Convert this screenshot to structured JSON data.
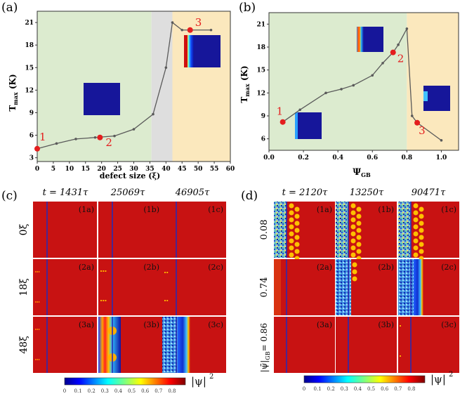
{
  "colors": {
    "green_bg": "#dcebcf",
    "gray_bg": "#dedede",
    "yellow_bg": "#fbe8bd",
    "line": "#5a5a5a",
    "marker": "#e41e1e",
    "label_red": "#e41e1e",
    "field_red": "#c81212",
    "field_blue": "#16169a",
    "gb_line": "#2a2ab0"
  },
  "panels": {
    "a": {
      "tag": "(a)"
    },
    "b": {
      "tag": "(b)"
    },
    "c": {
      "tag": "(c)",
      "col_headers": [
        "t = 1431τ",
        "25069τ",
        "46905τ"
      ],
      "row_labels": [
        "0ξ",
        "18ξ",
        "48ξ"
      ],
      "cells": [
        [
          "(1a)",
          "(1b)",
          "(1c)"
        ],
        [
          "(2a)",
          "(2b)",
          "(2c)"
        ],
        [
          "(3a)",
          "(3b)",
          "(3c)"
        ]
      ]
    },
    "d": {
      "tag": "(d)",
      "col_headers": [
        "t = 2120τ",
        "13250τ",
        "90471τ"
      ],
      "row_labels": [
        "0.08",
        "0.74",
        "= 0.86"
      ],
      "row_label_prefix": "|ψ̄|",
      "row_label_sub": "GB",
      "cells": [
        [
          "(1a)",
          "(1b)",
          "(1c)"
        ],
        [
          "(2a)",
          "(2b)",
          "(2c)"
        ],
        [
          "(3a)",
          "(3b)",
          "(3c)"
        ]
      ]
    }
  },
  "colorbar": {
    "ticks": [
      "0",
      "0.1",
      "0.2",
      "0.3",
      "0.4",
      "0.5",
      "0.6",
      "0.7",
      "0.8"
    ],
    "label": "|ψ|",
    "label_sup": "2"
  },
  "chart_data": [
    {
      "type": "line",
      "panel": "a",
      "xlabel": "defect size (ξ)",
      "ylabel": "T",
      "ylabel_sub": "max",
      "ylabel_unit": " (K)",
      "xlim": [
        0,
        60
      ],
      "ylim": [
        2.5,
        22.5
      ],
      "xticks": [
        0,
        5,
        10,
        15,
        20,
        25,
        30,
        35,
        40,
        45,
        50,
        55,
        60
      ],
      "yticks": [
        3,
        6,
        9,
        12,
        15,
        18,
        21
      ],
      "regions": [
        {
          "from": 0,
          "to": 35.5,
          "color": "green_bg"
        },
        {
          "from": 35.5,
          "to": 42,
          "color": "gray_bg"
        },
        {
          "from": 42,
          "to": 60,
          "color": "yellow_bg"
        }
      ],
      "x": [
        0,
        6,
        12,
        18,
        24,
        30,
        36,
        40,
        42,
        45,
        48,
        54
      ],
      "y": [
        4.2,
        4.9,
        5.5,
        5.7,
        5.9,
        6.8,
        8.8,
        15.0,
        21.0,
        20.0,
        20.0,
        20.0
      ],
      "highlights": [
        {
          "label": "1",
          "x": 0,
          "y": 4.2
        },
        {
          "label": "2",
          "x": 19.5,
          "y": 5.7
        },
        {
          "label": "3",
          "x": 47.5,
          "y": 20.0
        }
      ]
    },
    {
      "type": "line",
      "panel": "b",
      "xlabel": "Ψ",
      "xlabel_sub": "GB",
      "ylabel": "T",
      "ylabel_sub": "max",
      "ylabel_unit": " (K)",
      "xlim": [
        0,
        1.1
      ],
      "ylim": [
        4.5,
        22.5
      ],
      "xticks": [
        "0.0",
        "0.2",
        "0.4",
        "0.6",
        "0.8",
        "1.0"
      ],
      "yticks": [
        6,
        9,
        12,
        15,
        18,
        21
      ],
      "regions": [
        {
          "from": 0,
          "to": 0.8,
          "color": "green_bg"
        },
        {
          "from": 0.8,
          "to": 1.1,
          "color": "yellow_bg"
        }
      ],
      "x": [
        0.08,
        0.18,
        0.33,
        0.42,
        0.49,
        0.6,
        0.66,
        0.72,
        0.75,
        0.8,
        0.83,
        0.86,
        1.0
      ],
      "y": [
        8.2,
        9.8,
        12.0,
        12.5,
        13.0,
        14.3,
        15.9,
        17.3,
        18.3,
        20.4,
        9.0,
        8.1,
        5.8
      ],
      "highlights": [
        {
          "label": "1",
          "x": 0.08,
          "y": 8.2
        },
        {
          "label": "2",
          "x": 0.72,
          "y": 17.3
        },
        {
          "label": "3",
          "x": 0.86,
          "y": 8.1
        }
      ]
    }
  ]
}
